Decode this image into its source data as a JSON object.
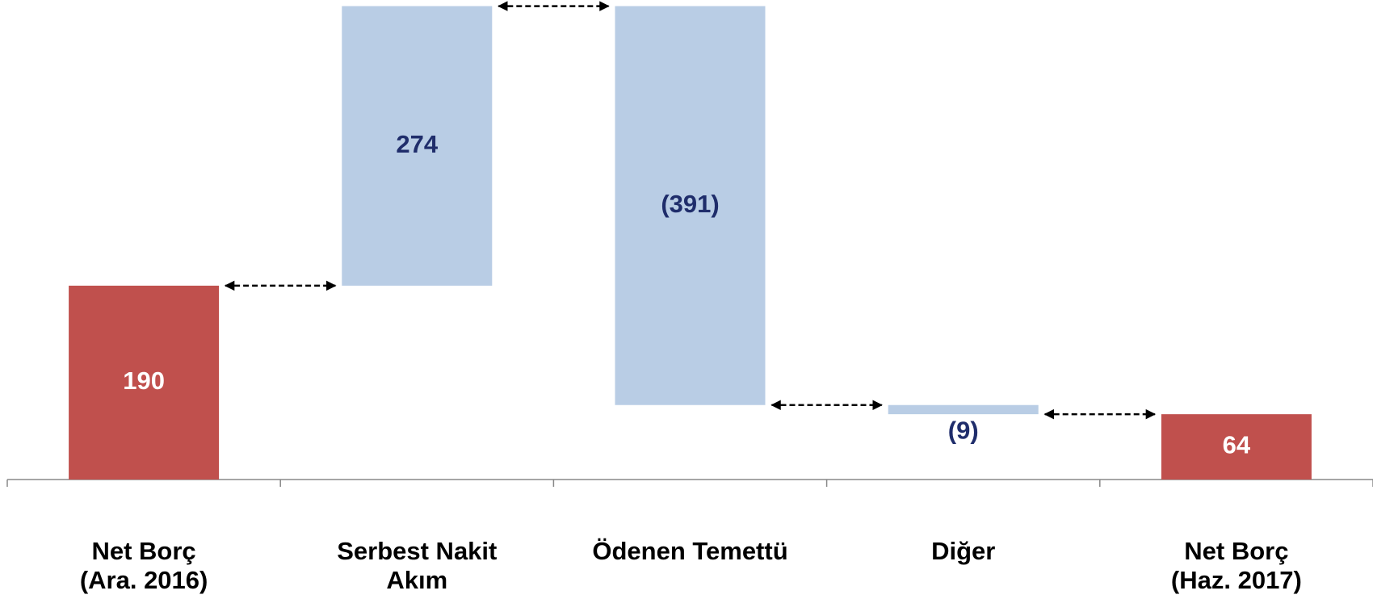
{
  "chart_data": {
    "type": "waterfall",
    "categories": [
      [
        "Net Borç",
        "(Ara. 2016)"
      ],
      [
        "Serbest Nakit",
        "Akım"
      ],
      [
        "Ödenen Temettü"
      ],
      [
        "Diğer"
      ],
      [
        "Net Borç",
        "(Haz. 2017)"
      ]
    ],
    "values": [
      190,
      274,
      -391,
      -9,
      64
    ],
    "value_labels": [
      "190",
      "274",
      "(391)",
      "(9)",
      "64"
    ],
    "measure": [
      "absolute",
      "relative",
      "relative",
      "relative",
      "absolute"
    ],
    "total_color": "#c0504d",
    "delta_color": "#b9cde5",
    "total_label_color": "#ffffff",
    "delta_label_color": "#1f2d6b",
    "ylim": [
      0,
      470
    ]
  }
}
